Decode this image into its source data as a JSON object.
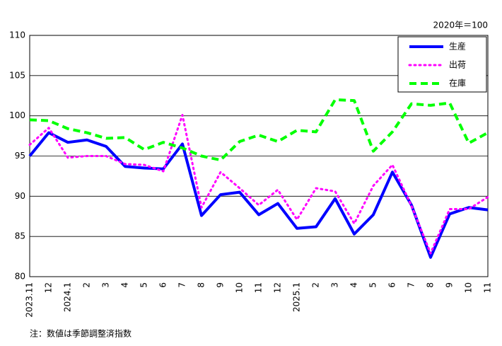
{
  "chart_data": {
    "type": "line",
    "unit_note": "2020年＝100",
    "footnote": "注：数値は季節調整済指数",
    "categories": [
      "2023.11",
      "12",
      "2024.1",
      "2",
      "3",
      "4",
      "5",
      "6",
      "7",
      "8",
      "9",
      "10",
      "11",
      "12",
      "2025.1",
      "2",
      "3",
      "4",
      "5",
      "6",
      "7",
      "8",
      "9",
      "10",
      "11"
    ],
    "series": [
      {
        "name": "生産",
        "color": "#0000ff",
        "style": "solid",
        "values": [
          95.0,
          97.9,
          96.7,
          97.0,
          96.2,
          93.7,
          93.5,
          93.4,
          96.5,
          87.6,
          90.2,
          90.5,
          87.7,
          89.1,
          86.0,
          86.2,
          89.7,
          85.3,
          87.7,
          93.0,
          88.9,
          82.4,
          87.8,
          88.6,
          88.3
        ]
      },
      {
        "name": "出荷",
        "color": "#ff00ff",
        "style": "dotted",
        "values": [
          96.4,
          98.5,
          94.8,
          95.0,
          95.0,
          94.0,
          93.9,
          93.1,
          100.1,
          88.6,
          93.0,
          91.0,
          88.9,
          90.8,
          87.1,
          91.0,
          90.6,
          86.6,
          91.3,
          93.9,
          88.8,
          82.9,
          88.4,
          88.4,
          89.9
        ]
      },
      {
        "name": "在庫",
        "color": "#00ff00",
        "style": "dashed",
        "values": [
          99.5,
          99.4,
          98.4,
          97.9,
          97.2,
          97.3,
          95.8,
          96.7,
          96.0,
          95.0,
          94.5,
          96.8,
          97.6,
          96.8,
          98.2,
          98.0,
          102.0,
          101.9,
          95.6,
          98.0,
          101.5,
          101.3,
          101.6,
          96.6,
          97.9
        ]
      }
    ],
    "ylim": [
      80,
      110
    ],
    "yticks": [
      80,
      85,
      90,
      95,
      100,
      105,
      110
    ],
    "grid": true,
    "legend": "top-right"
  }
}
